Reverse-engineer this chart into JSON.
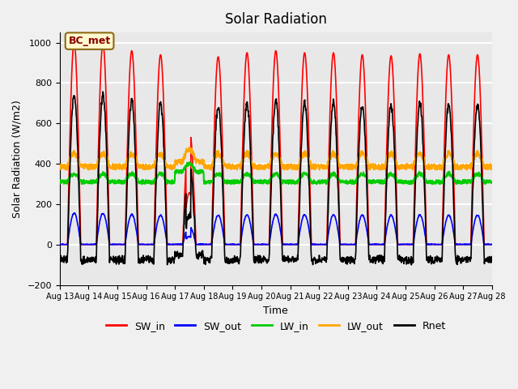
{
  "title": "Solar Radiation",
  "xlabel": "Time",
  "ylabel": "Solar Radiation (W/m2)",
  "ylim": [
    -200,
    1050
  ],
  "start_day": 13,
  "end_day": 28,
  "annotation": "BC_met",
  "colors": {
    "SW_in": "#ff0000",
    "SW_out": "#0000ff",
    "LW_in": "#00cc00",
    "LW_out": "#ffa500",
    "Rnet": "#000000"
  },
  "linewidths": {
    "SW_in": 1.2,
    "SW_out": 1.2,
    "LW_in": 1.5,
    "LW_out": 1.5,
    "Rnet": 1.2
  },
  "background_color": "#e8e8e8",
  "grid_color": "#ffffff"
}
